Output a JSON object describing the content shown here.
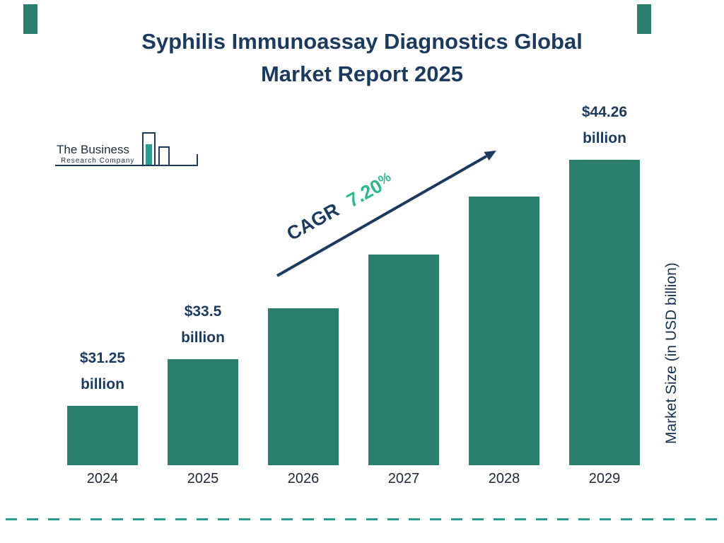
{
  "title": {
    "line1": "Syphilis Immunoassay Diagnostics Global",
    "line2": "Market Report 2025"
  },
  "logo": {
    "name_line1": "The Business",
    "name_line2": "Research Company"
  },
  "cagr": {
    "label": "CAGR",
    "number": "7.20",
    "percent_sign": "%"
  },
  "y_axis_label": "Market Size (in USD billion)",
  "colors": {
    "bar": "#2a7f6e",
    "navy": "#1c3a5e",
    "accent_green": "#2eb98c",
    "dash_line": "#2a9d8f"
  },
  "chart_data": {
    "type": "bar",
    "title": "Syphilis Immunoassay Diagnostics Global Market Report 2025",
    "categories": [
      "2024",
      "2025",
      "2026",
      "2027",
      "2028",
      "2029"
    ],
    "values": [
      31.25,
      33.5,
      35.91,
      38.5,
      41.27,
      44.26
    ],
    "value_labels": [
      {
        "category": "2024",
        "amount": "$31.25",
        "unit": "billion"
      },
      {
        "category": "2025",
        "amount": "$33.5",
        "unit": "billion"
      },
      {
        "category": "2029",
        "amount": "$44.26",
        "unit": "billion"
      }
    ],
    "xlabel": "",
    "ylabel": "Market Size (in USD billion)",
    "cagr_percent": 7.2,
    "legend": false,
    "grid": false,
    "note": "bar heights not drawn from zero baseline"
  }
}
